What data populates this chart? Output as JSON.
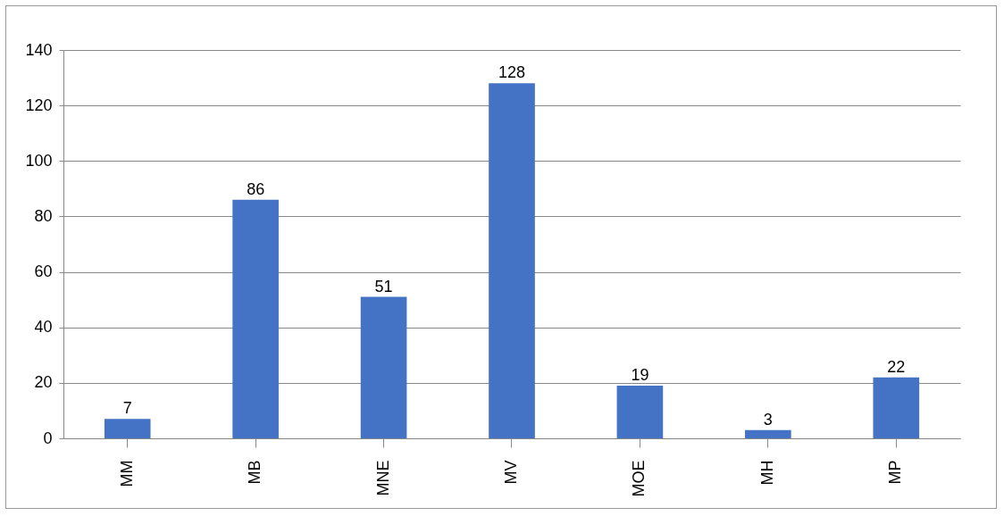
{
  "chart_data": {
    "type": "bar",
    "categories": [
      "MM",
      "MB",
      "MNE",
      "MV",
      "MOE",
      "MH",
      "MP"
    ],
    "values": [
      7,
      86,
      51,
      128,
      19,
      3,
      22
    ],
    "color": "#4472c4",
    "ylim": [
      0,
      140
    ],
    "yticks": [
      0,
      20,
      40,
      60,
      80,
      100,
      120,
      140
    ],
    "grid": "y",
    "data_labels": true
  }
}
